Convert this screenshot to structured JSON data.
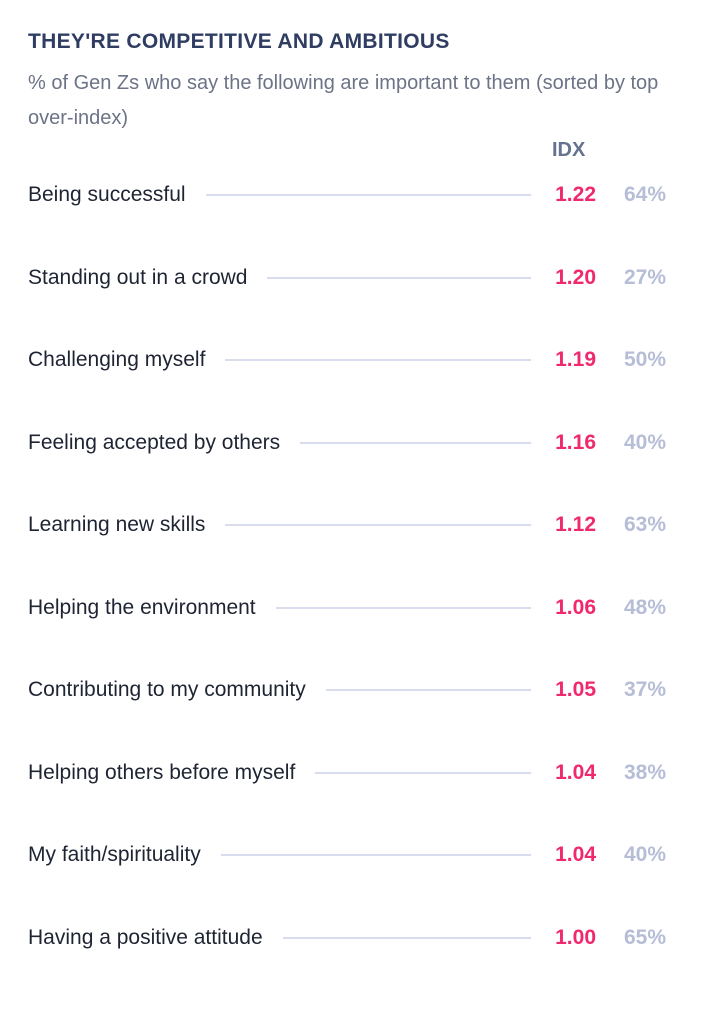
{
  "title": "THEY'RE COMPETITIVE AND AMBITIOUS",
  "subtitle": "% of Gen Zs who say the following are important to them (sorted by top over-index)",
  "column_header": "IDX",
  "colors": {
    "title": "#2f3d63",
    "idx": "#f0286e",
    "percent": "#b6bdd6",
    "leader_line": "#d9dcec"
  },
  "chart_data": {
    "type": "table",
    "title": "THEY'RE COMPETITIVE AND AMBITIOUS",
    "subtitle": "% of Gen Zs who say the following are important to them (sorted by top over-index)",
    "columns": [
      "",
      "IDX",
      ""
    ],
    "rows": [
      {
        "label": "Being successful",
        "idx": "1.22",
        "percent": "64%"
      },
      {
        "label": "Standing out in a crowd",
        "idx": "1.20",
        "percent": "27%"
      },
      {
        "label": "Challenging myself",
        "idx": "1.19",
        "percent": "50%"
      },
      {
        "label": "Feeling accepted by others",
        "idx": "1.16",
        "percent": "40%"
      },
      {
        "label": "Learning new skills",
        "idx": "1.12",
        "percent": "63%"
      },
      {
        "label": "Helping the environment",
        "idx": "1.06",
        "percent": "48%"
      },
      {
        "label": "Contributing to my community",
        "idx": "1.05",
        "percent": "37%"
      },
      {
        "label": "Helping others before myself",
        "idx": "1.04",
        "percent": "38%"
      },
      {
        "label": "My faith/spirituality",
        "idx": "1.04",
        "percent": "40%"
      },
      {
        "label": "Having a positive attitude",
        "idx": "1.00",
        "percent": "65%"
      }
    ]
  }
}
